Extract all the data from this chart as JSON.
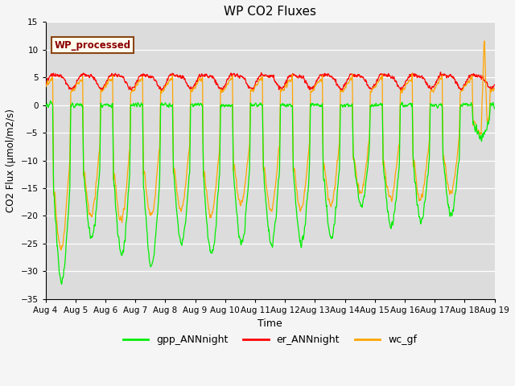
{
  "title": "WP CO2 Fluxes",
  "xlabel": "Time",
  "ylabel": "CO2 Flux (μmol/m2/s)",
  "ylim": [
    -35,
    15
  ],
  "yticks": [
    -35,
    -30,
    -25,
    -20,
    -15,
    -10,
    -5,
    0,
    5,
    10,
    15
  ],
  "x_tick_labels": [
    "Aug 4",
    "Aug 5",
    "Aug 6",
    "Aug 7",
    "Aug 8",
    "Aug 9",
    "Aug 10",
    "Aug 11",
    "Aug 12",
    "Aug 13",
    "Aug 14",
    "Aug 15",
    "Aug 16",
    "Aug 17",
    "Aug 18",
    "Aug 19"
  ],
  "plot_bg_color": "#dcdcdc",
  "fig_bg_color": "#f5f5f5",
  "line_gpp_color": "#00ee00",
  "line_er_color": "#ff0000",
  "line_wc_color": "#ffa500",
  "inset_label": "WP_processed",
  "inset_text_color": "#8b0000",
  "inset_bg_color": "#fffff0",
  "inset_edge_color": "#8b4513",
  "legend_labels": [
    "gpp_ANNnight",
    "er_ANNnight",
    "wc_gf"
  ],
  "n_days": 15,
  "points_per_day": 96,
  "gpp_day_peaks": [
    -32,
    -24,
    -27,
    -29,
    -25,
    -27,
    -25,
    -25,
    -25,
    -24,
    -18,
    -22,
    -21,
    -20,
    -6
  ],
  "wc_day_peaks": [
    -26,
    -20,
    -21,
    -20,
    -19,
    -20,
    -18,
    -19,
    -19,
    -18,
    -16,
    -17,
    -17,
    -16,
    -5
  ],
  "er_base": 4.5,
  "er_amp": 1.2
}
